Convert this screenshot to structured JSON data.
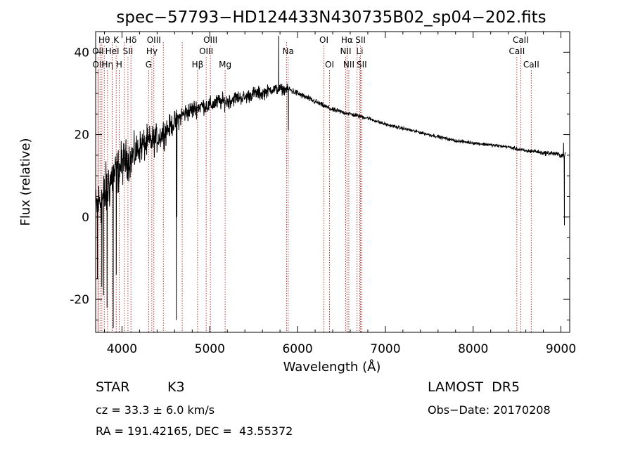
{
  "chart_data": {
    "type": "line",
    "title": "spec−57793−HD124433N430735B02_sp04−202.fits",
    "xlabel": "Wavelength (Å)",
    "ylabel": "Flux (relative)",
    "xlim": [
      3700,
      9100
    ],
    "ylim": [
      -28,
      45
    ],
    "x_ticks": [
      4000,
      5000,
      6000,
      7000,
      8000,
      9000
    ],
    "y_ticks": [
      -20,
      0,
      20,
      40
    ],
    "grid": false,
    "colors": {
      "spectrum": "#000000",
      "lines": "#b22222",
      "axes": "#000000"
    },
    "spectrum_envelope": {
      "x": [
        3700,
        3750,
        3800,
        3850,
        3900,
        3950,
        4000,
        4050,
        4100,
        4200,
        4300,
        4400,
        4500,
        4550,
        4600,
        4700,
        4800,
        4900,
        5000,
        5100,
        5200,
        5300,
        5400,
        5500,
        5600,
        5700,
        5800,
        5900,
        6000,
        6200,
        6400,
        6600,
        6800,
        7000,
        7200,
        7400,
        7600,
        7800,
        8000,
        8200,
        8400,
        8500,
        8600,
        8700,
        8800,
        8900,
        9000,
        9050
      ],
      "y": [
        2,
        4,
        5,
        8,
        10,
        11,
        13,
        14,
        14,
        17,
        18,
        19,
        21,
        22,
        23,
        25,
        26,
        27,
        27,
        28,
        28,
        29,
        29,
        30,
        30,
        31,
        31,
        31,
        30,
        28,
        26,
        25,
        24,
        22.5,
        21.5,
        20.5,
        19.5,
        18.5,
        18,
        17.5,
        17,
        16.5,
        16,
        16,
        15.5,
        15.5,
        15,
        15
      ],
      "scatter": [
        8,
        9,
        10,
        10,
        9,
        8,
        8,
        7,
        7,
        6,
        6,
        5,
        5,
        4,
        4,
        3.5,
        3.5,
        3,
        3,
        3,
        3,
        2.5,
        2.5,
        2.5,
        2.5,
        2,
        2,
        1.5,
        1.2,
        1,
        0.9,
        0.8,
        0.7,
        0.6,
        0.6,
        0.6,
        0.6,
        0.6,
        0.6,
        0.6,
        0.6,
        0.7,
        0.7,
        0.7,
        0.8,
        0.9,
        1,
        1
      ]
    },
    "spikes": [
      {
        "x": 3720,
        "y": -15
      },
      {
        "x": 3770,
        "y": -17
      },
      {
        "x": 3790,
        "y": -19
      },
      {
        "x": 3830,
        "y": -22
      },
      {
        "x": 3900,
        "y": -27
      },
      {
        "x": 3935,
        "y": -14
      },
      {
        "x": 4620,
        "y": -25
      },
      {
        "x": 4625,
        "y": 0
      },
      {
        "x": 5785,
        "y": 44
      },
      {
        "x": 5895,
        "y": 21
      },
      {
        "x": 9040,
        "y": -2
      },
      {
        "x": 9030,
        "y": 18
      }
    ],
    "line_markers": [
      {
        "label": "Hθ",
        "x": 3798,
        "row": 0
      },
      {
        "label": "K",
        "x": 3934,
        "row": 0
      },
      {
        "label": "Hδ",
        "x": 4102,
        "row": 0
      },
      {
        "label": "OIII",
        "x": 4363,
        "row": 0
      },
      {
        "label": "OIII",
        "x": 5007,
        "row": 0
      },
      {
        "label": "OI",
        "x": 6300,
        "row": 0
      },
      {
        "label": "Hα",
        "x": 6563,
        "row": 0
      },
      {
        "label": "SII",
        "x": 6717,
        "row": 0
      },
      {
        "label": "CaII",
        "x": 8542,
        "row": 0
      },
      {
        "label": "OII",
        "x": 3727,
        "row": 1
      },
      {
        "label": "HeI",
        "x": 3889,
        "row": 1
      },
      {
        "label": "SII",
        "x": 4068,
        "row": 1
      },
      {
        "label": "Hγ",
        "x": 4340,
        "row": 1
      },
      {
        "label": "OIII",
        "x": 4959,
        "row": 1
      },
      {
        "label": "Na",
        "x": 5893,
        "row": 1
      },
      {
        "label": "NII",
        "x": 6548,
        "row": 1
      },
      {
        "label": "Li",
        "x": 6708,
        "row": 1
      },
      {
        "label": "CaII",
        "x": 8498,
        "row": 1
      },
      {
        "label": "OII",
        "x": 3729,
        "row": 2
      },
      {
        "label": "Hη",
        "x": 3835,
        "row": 2
      },
      {
        "label": "H",
        "x": 3968,
        "row": 2
      },
      {
        "label": "G",
        "x": 4304,
        "row": 2
      },
      {
        "label": "Hβ",
        "x": 4861,
        "row": 2
      },
      {
        "label": "Mg",
        "x": 5175,
        "row": 2
      },
      {
        "label": "OI",
        "x": 6364,
        "row": 2
      },
      {
        "label": "NII",
        "x": 6584,
        "row": 2
      },
      {
        "label": "SII",
        "x": 6731,
        "row": 2
      },
      {
        "label": "CaII",
        "x": 8662,
        "row": 2
      }
    ],
    "extra_marker_x": [
      3750,
      3771,
      3889,
      4026,
      4471,
      4686,
      5876,
      6678
    ]
  },
  "info": {
    "object_class": "STAR",
    "subclass": "K3",
    "survey": "LAMOST  DR5",
    "redshift": "cz = 33.3 ± 6.0 km/s",
    "obs_date": "Obs−Date: 20170208",
    "coords": "RA = 191.42165, DEC =  43.55372"
  }
}
